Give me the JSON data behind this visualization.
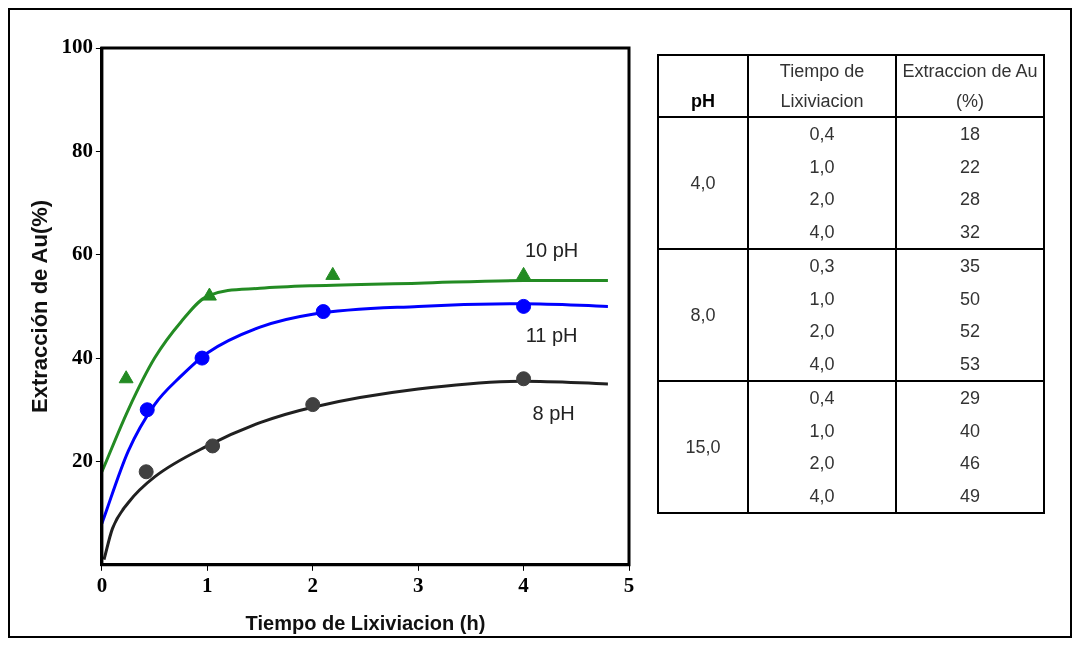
{
  "chart_data": [
    {
      "type": "scatter",
      "xlabel": "Tiempo de Lixiviacion (h)",
      "ylabel": "Extracción de Au(%)",
      "xlim": [
        0,
        5
      ],
      "xticks": [
        0,
        1,
        2,
        3,
        4,
        5
      ],
      "ylim": [
        0,
        100
      ],
      "yticks": [
        20,
        40,
        60,
        80,
        100
      ],
      "grid": false,
      "legend": false,
      "series": [
        {
          "name": "10 pH",
          "color": "#238b23",
          "marker": "triangle",
          "x": [
            0.23,
            1.02,
            2.19,
            4.0
          ],
          "values": [
            36,
            52,
            56,
            56
          ]
        },
        {
          "name": "11 pH",
          "color": "#0000ff",
          "marker": "circle",
          "x": [
            0.43,
            0.95,
            2.1,
            4.0
          ],
          "values": [
            30,
            40,
            49,
            50
          ]
        },
        {
          "name": "8 pH",
          "color": "#404040",
          "marker": "circle",
          "x": [
            0.42,
            1.05,
            2.0,
            4.0
          ],
          "values": [
            18,
            23,
            31,
            36
          ]
        },
        {
          "type": "line",
          "color": "#238b23",
          "marker": "none",
          "x": [
            0,
            0.25,
            0.5,
            0.75,
            1,
            1.5,
            2,
            3,
            4,
            4.8
          ],
          "values": [
            18,
            30,
            40,
            47,
            52,
            53.5,
            54,
            54.5,
            55,
            55
          ]
        },
        {
          "type": "line",
          "color": "#0000ff",
          "marker": "none",
          "x": [
            0,
            0.25,
            0.5,
            0.75,
            1,
            1.5,
            2,
            3,
            4,
            4.8
          ],
          "values": [
            8,
            22,
            31,
            36.5,
            41,
            46,
            48.5,
            50,
            50.5,
            50
          ]
        },
        {
          "type": "line",
          "color": "#202020",
          "marker": "none",
          "x": [
            0.02,
            0.1,
            0.25,
            0.5,
            1,
            1.5,
            2,
            3,
            4,
            4.8
          ],
          "values": [
            1,
            7,
            12,
            17,
            23,
            27.5,
            30.5,
            34,
            35.5,
            35
          ]
        }
      ]
    },
    {
      "type": "other",
      "annotations": [
        "pH",
        "Tiempo de Lixiviacion",
        "Extraccion de Au (%)",
        "4,0",
        "0,4",
        "18",
        "1,0",
        "22",
        "2,0",
        "28",
        "4,0",
        "32",
        "8,0",
        "0,3",
        "35",
        "1,0",
        "50",
        "2,0",
        "52",
        "4,0",
        "53",
        "15,0",
        "0,4",
        "29",
        "1,0",
        "40",
        "2,0",
        "46",
        "4,0",
        "49"
      ]
    }
  ]
}
